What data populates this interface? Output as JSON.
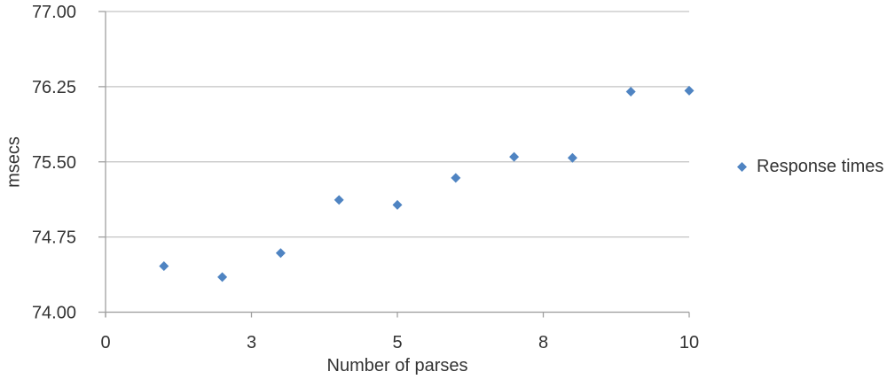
{
  "chart_data": {
    "type": "scatter",
    "title": "",
    "xlabel": "Number of parses",
    "ylabel": "msecs",
    "xlim": [
      0,
      10
    ],
    "ylim": [
      74,
      77
    ],
    "grid": true,
    "x_tick_values": [
      0,
      2.5,
      5,
      7.5,
      10
    ],
    "x_tick_labels": [
      "0",
      "3",
      "5",
      "8",
      "10"
    ],
    "y_tick_values": [
      74,
      74.75,
      75.5,
      76.25,
      77
    ],
    "y_tick_labels": [
      "74.00",
      "74.75",
      "75.50",
      "76.25",
      "77.00"
    ],
    "series": [
      {
        "name": "Response times",
        "marker": "diamond",
        "x": [
          1,
          2,
          3,
          4,
          5,
          6,
          7,
          8,
          9,
          10
        ],
        "y": [
          74.46,
          74.35,
          74.59,
          75.12,
          75.07,
          75.34,
          75.55,
          75.54,
          76.2,
          76.21
        ]
      }
    ],
    "legend": {
      "position": "right",
      "entries": [
        "Response times"
      ]
    },
    "colors": {
      "marker": "#4f84c2",
      "gridline": "#c3c3c3",
      "axis": "#a0a0a0",
      "text": "#333333"
    }
  }
}
